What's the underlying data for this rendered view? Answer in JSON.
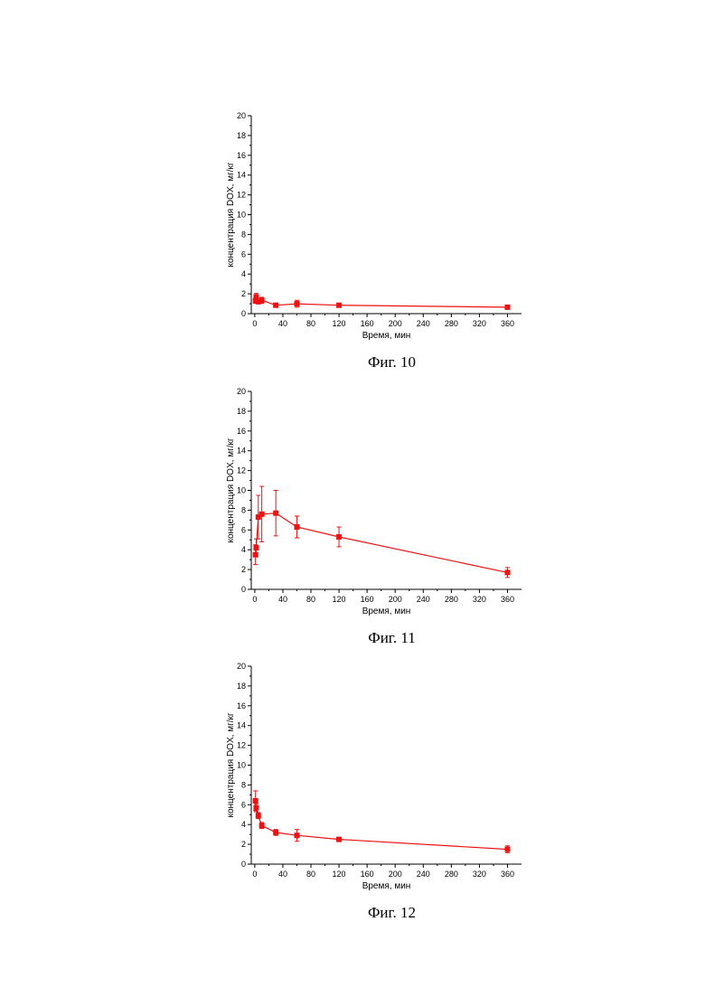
{
  "chart_data": [
    {
      "type": "line",
      "caption": "Фиг. 10",
      "xlabel": "Время, мин",
      "ylabel": "концентрация DOX, мг/кг",
      "xlim": [
        -5,
        380
      ],
      "ylim": [
        0,
        20
      ],
      "xticks": [
        "0",
        "40",
        "80",
        "120",
        "160",
        "200",
        "240",
        "280",
        "320",
        "360"
      ],
      "yticks": [
        "0",
        "2",
        "4",
        "6",
        "8",
        "10",
        "12",
        "14",
        "16",
        "18",
        "20"
      ],
      "marker_color": "#ee1111",
      "series": [
        {
          "x": [
            1,
            2,
            5,
            10,
            30,
            60,
            120,
            360
          ],
          "y": [
            1.3,
            1.7,
            1.2,
            1.35,
            0.85,
            1.0,
            0.85,
            0.65
          ],
          "err": [
            0.25,
            0.35,
            0.2,
            0.3,
            0.1,
            0.35,
            0.2,
            0.1
          ]
        }
      ]
    },
    {
      "type": "line",
      "caption": "Фиг. 11",
      "xlabel": "Время, мин",
      "ylabel": "концентрация DOX, мг/кг",
      "xlim": [
        -5,
        380
      ],
      "ylim": [
        0,
        20
      ],
      "xticks": [
        "0",
        "40",
        "80",
        "120",
        "160",
        "200",
        "240",
        "280",
        "320",
        "360"
      ],
      "yticks": [
        "0",
        "2",
        "4",
        "6",
        "8",
        "10",
        "12",
        "14",
        "16",
        "18",
        "20"
      ],
      "marker_color": "#ee1111",
      "series": [
        {
          "x": [
            1,
            2,
            5,
            10,
            30,
            60,
            120,
            360
          ],
          "y": [
            3.5,
            4.2,
            7.3,
            7.6,
            7.7,
            6.3,
            5.3,
            1.7
          ],
          "err": [
            1.0,
            0.9,
            2.2,
            2.8,
            2.3,
            1.1,
            1.0,
            0.5
          ]
        }
      ]
    },
    {
      "type": "line",
      "caption": "Фиг. 12",
      "xlabel": "Время, мин",
      "ylabel": "концентрация DOX, мг/кг",
      "xlim": [
        -5,
        380
      ],
      "ylim": [
        0,
        20
      ],
      "xticks": [
        "0",
        "40",
        "80",
        "120",
        "160",
        "200",
        "240",
        "280",
        "320",
        "360"
      ],
      "yticks": [
        "0",
        "2",
        "4",
        "6",
        "8",
        "10",
        "12",
        "14",
        "16",
        "18",
        "20"
      ],
      "marker_color": "#ee1111",
      "series": [
        {
          "x": [
            1,
            2,
            5,
            10,
            30,
            60,
            120,
            360
          ],
          "y": [
            6.4,
            5.7,
            4.9,
            3.9,
            3.2,
            2.9,
            2.5,
            1.5
          ],
          "err": [
            1.0,
            0.4,
            0.3,
            0.3,
            0.3,
            0.6,
            0.1,
            0.35
          ]
        }
      ]
    }
  ]
}
